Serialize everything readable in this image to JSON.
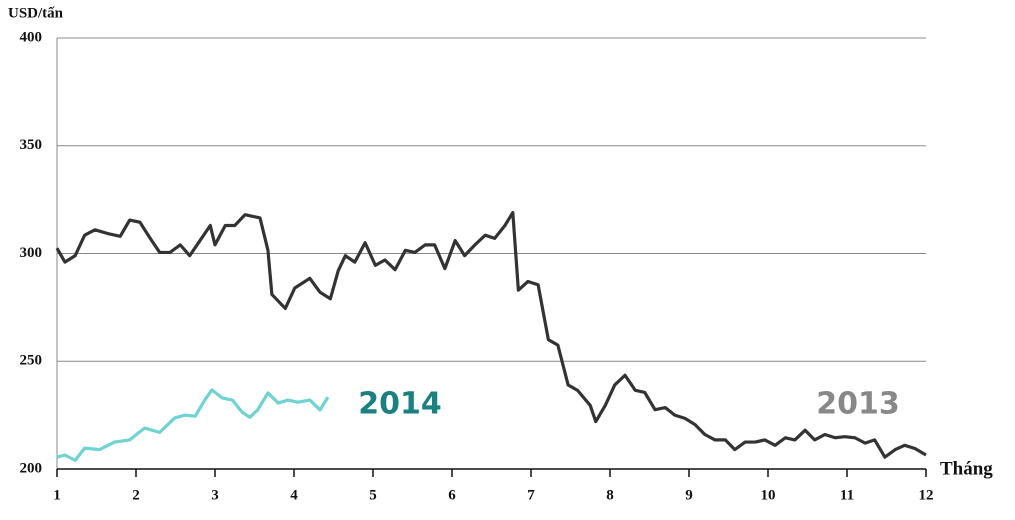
{
  "chart_data": {
    "type": "line",
    "y_axis_label": "USD/tấn",
    "x_axis_label": "Tháng",
    "xlim": [
      1,
      12
    ],
    "xticks": [
      1,
      2,
      3,
      4,
      5,
      6,
      7,
      8,
      9,
      10,
      11,
      12
    ],
    "ylim": [
      200,
      400
    ],
    "yticks": [
      200,
      250,
      300,
      350,
      400
    ],
    "grid": true,
    "series": [
      {
        "name": "2013",
        "color": "#333333",
        "x": [
          1.0,
          1.1,
          1.23,
          1.35,
          1.48,
          1.67,
          1.8,
          1.92,
          2.05,
          2.18,
          2.3,
          2.43,
          2.56,
          2.68,
          2.81,
          2.94,
          3.0,
          3.13,
          3.25,
          3.38,
          3.57,
          3.67,
          3.72,
          3.89,
          4.01,
          4.2,
          4.33,
          4.46,
          4.56,
          4.65,
          4.77,
          4.9,
          5.03,
          5.15,
          5.28,
          5.41,
          5.53,
          5.66,
          5.78,
          5.91,
          6.04,
          6.16,
          6.29,
          6.42,
          6.54,
          6.67,
          6.77,
          6.84,
          6.96,
          7.09,
          7.22,
          7.34,
          7.47,
          7.59,
          7.75,
          7.82,
          7.94,
          8.06,
          8.19,
          8.32,
          8.44,
          8.57,
          8.7,
          8.82,
          8.95,
          9.08,
          9.2,
          9.33,
          9.46,
          9.58,
          9.71,
          9.84,
          9.96,
          10.09,
          10.22,
          10.34,
          10.47,
          10.59,
          10.72,
          10.85,
          10.97,
          11.1,
          11.23,
          11.35,
          11.48,
          11.61,
          11.73,
          11.86,
          12.0
        ],
        "values": [
          302.5,
          296,
          299,
          308.5,
          311,
          309,
          308,
          315.5,
          314.5,
          307,
          300.5,
          300.5,
          304,
          299,
          306,
          313,
          304,
          313,
          313,
          318,
          316.5,
          301.5,
          281,
          274.5,
          284,
          288.5,
          282,
          279,
          292,
          299,
          296,
          305,
          294.5,
          297,
          292.5,
          301.5,
          300.5,
          304,
          304,
          293,
          306,
          299,
          304,
          308.5,
          307,
          313,
          319,
          283,
          287,
          285.5,
          260,
          257.5,
          239,
          236.5,
          229.5,
          222,
          229.5,
          239,
          243.5,
          236.5,
          235.5,
          227.5,
          228.5,
          225,
          223.5,
          220.5,
          216,
          213.5,
          213.5,
          209,
          212.5,
          212.5,
          213.5,
          211,
          214.5,
          213.5,
          218,
          213.5,
          216,
          214.5,
          215,
          214.5,
          212,
          213.5,
          205.5,
          209,
          211,
          209.5,
          206.5
        ]
      },
      {
        "name": "2014",
        "color": "#6fd3d3",
        "x": [
          1.0,
          1.1,
          1.23,
          1.35,
          1.54,
          1.73,
          1.92,
          2.11,
          2.3,
          2.49,
          2.62,
          2.75,
          2.87,
          2.96,
          3.09,
          3.22,
          3.34,
          3.44,
          3.54,
          3.67,
          3.8,
          3.92,
          4.05,
          4.2,
          4.33,
          4.43
        ],
        "values": [
          205.5,
          206.5,
          204,
          209.7,
          209,
          212.5,
          213.5,
          219,
          217,
          223.7,
          225,
          224.5,
          232,
          236.7,
          233,
          232,
          226.5,
          224,
          227.4,
          235.3,
          230.6,
          232,
          231,
          232,
          227.4,
          233.4
        ]
      }
    ]
  }
}
